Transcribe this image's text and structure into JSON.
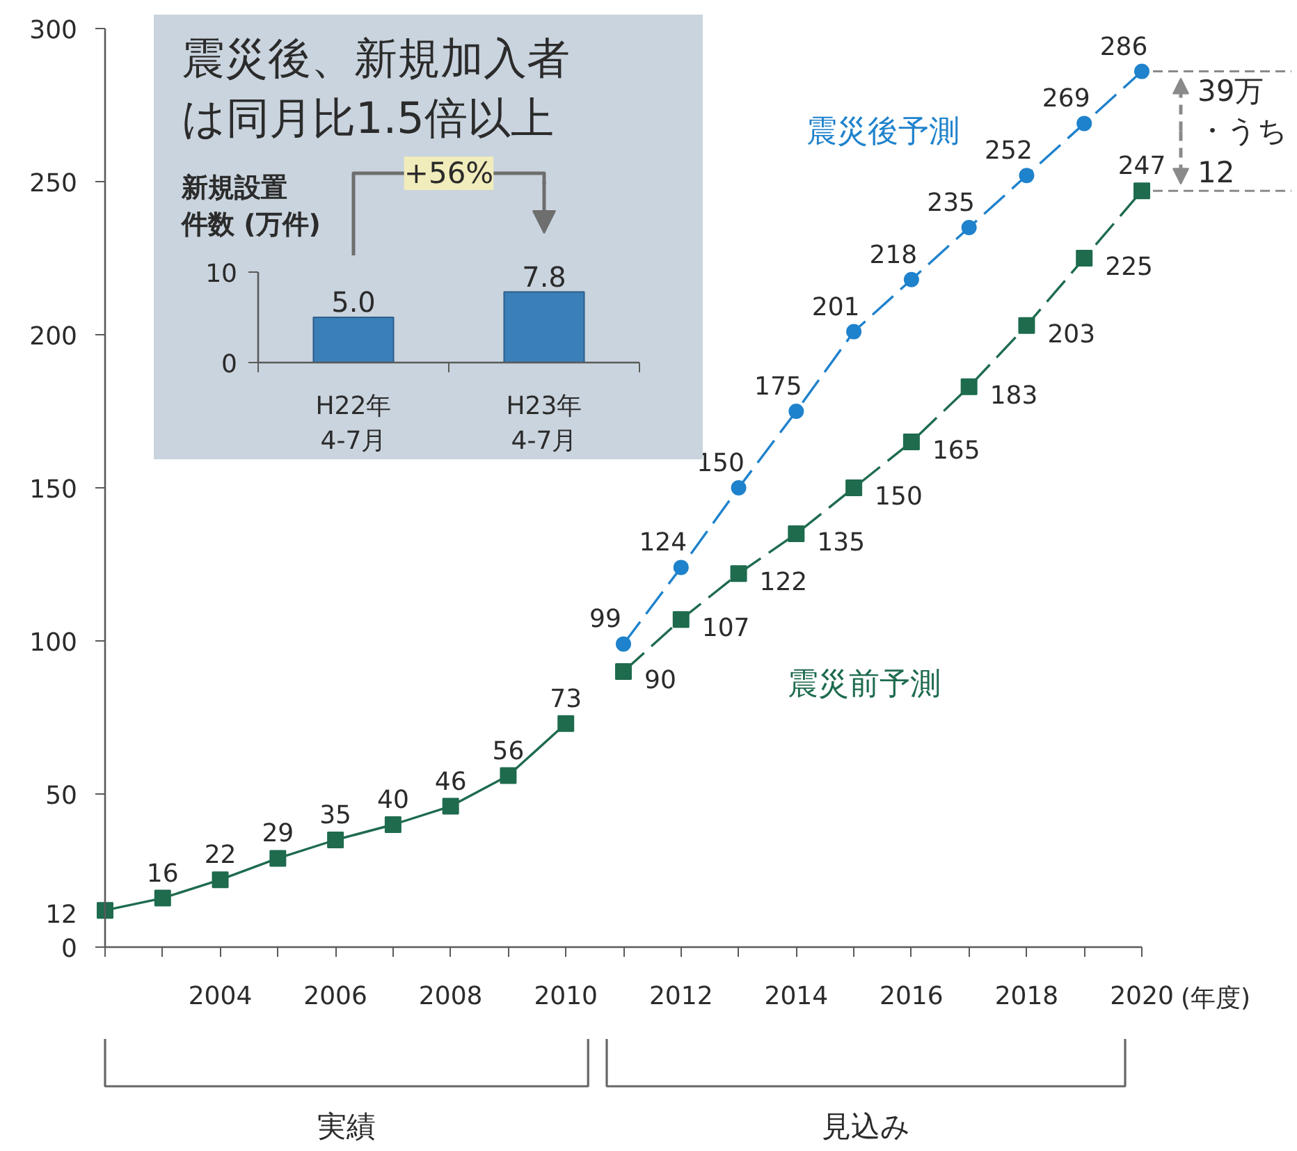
{
  "chart_data": [
    {
      "type": "line",
      "xlabel": "(年度)",
      "xlim": [
        2002,
        2020
      ],
      "ylim": [
        0,
        300
      ],
      "xticks": [
        {
          "value": 2002,
          "label": null
        },
        {
          "value": 2003,
          "label": null
        },
        2004,
        {
          "value": 2005,
          "label": null
        },
        2006,
        {
          "value": 2007,
          "label": null
        },
        2008,
        {
          "value": 2009,
          "label": null
        },
        2010,
        {
          "value": 2011,
          "label": null
        },
        2012,
        {
          "value": 2013,
          "label": null
        },
        2014,
        {
          "value": 2015,
          "label": null
        },
        2016,
        {
          "value": 2017,
          "label": null
        },
        2018,
        {
          "value": 2019,
          "label": null
        },
        2020
      ],
      "yticks": [
        0,
        50,
        100,
        150,
        200,
        250,
        300
      ],
      "data_labels": true,
      "series": [
        {
          "color": "#1e6b4e",
          "marker": "square",
          "line_style": "solid",
          "x": [
            2002,
            2003,
            2004,
            2005,
            2006,
            2007,
            2008,
            2009,
            2010
          ],
          "values": [
            12,
            16,
            22,
            29,
            35,
            40,
            46,
            56,
            73
          ]
        },
        {
          "name": "震災前予測",
          "color": "#1e6b4e",
          "marker": "square",
          "line_style": "dashed",
          "x": [
            2011,
            2012,
            2013,
            2014,
            2015,
            2016,
            2017,
            2018,
            2019,
            2020
          ],
          "values": [
            90,
            107,
            122,
            135,
            150,
            165,
            183,
            203,
            225,
            247
          ]
        },
        {
          "name": "震災後予測",
          "color": "#1f82cc",
          "marker": "circle",
          "line_style": "dashed",
          "x": [
            2011,
            2012,
            2013,
            2014,
            2015,
            2016,
            2017,
            2018,
            2019,
            2020
          ],
          "values": [
            99,
            124,
            150,
            175,
            201,
            218,
            235,
            252,
            269,
            286
          ]
        }
      ],
      "annotations": [
        "39万",
        "・うち",
        "12",
        "実績",
        "見込み"
      ]
    },
    {
      "type": "bar",
      "title": "震災後、新規加入者は同月比1.5倍以上",
      "ylabel": "新規設置件数 (万件)",
      "categories": [
        "H22年\n4-7月",
        "H23年\n4-7月"
      ],
      "values": [
        5.0,
        7.8
      ],
      "value_labels": [
        "5.0",
        "7.8"
      ],
      "color": "#3b7fb8",
      "ylim": [
        0,
        10
      ],
      "yticks": [
        0,
        10
      ],
      "annotations": [
        "+56%"
      ]
    }
  ]
}
